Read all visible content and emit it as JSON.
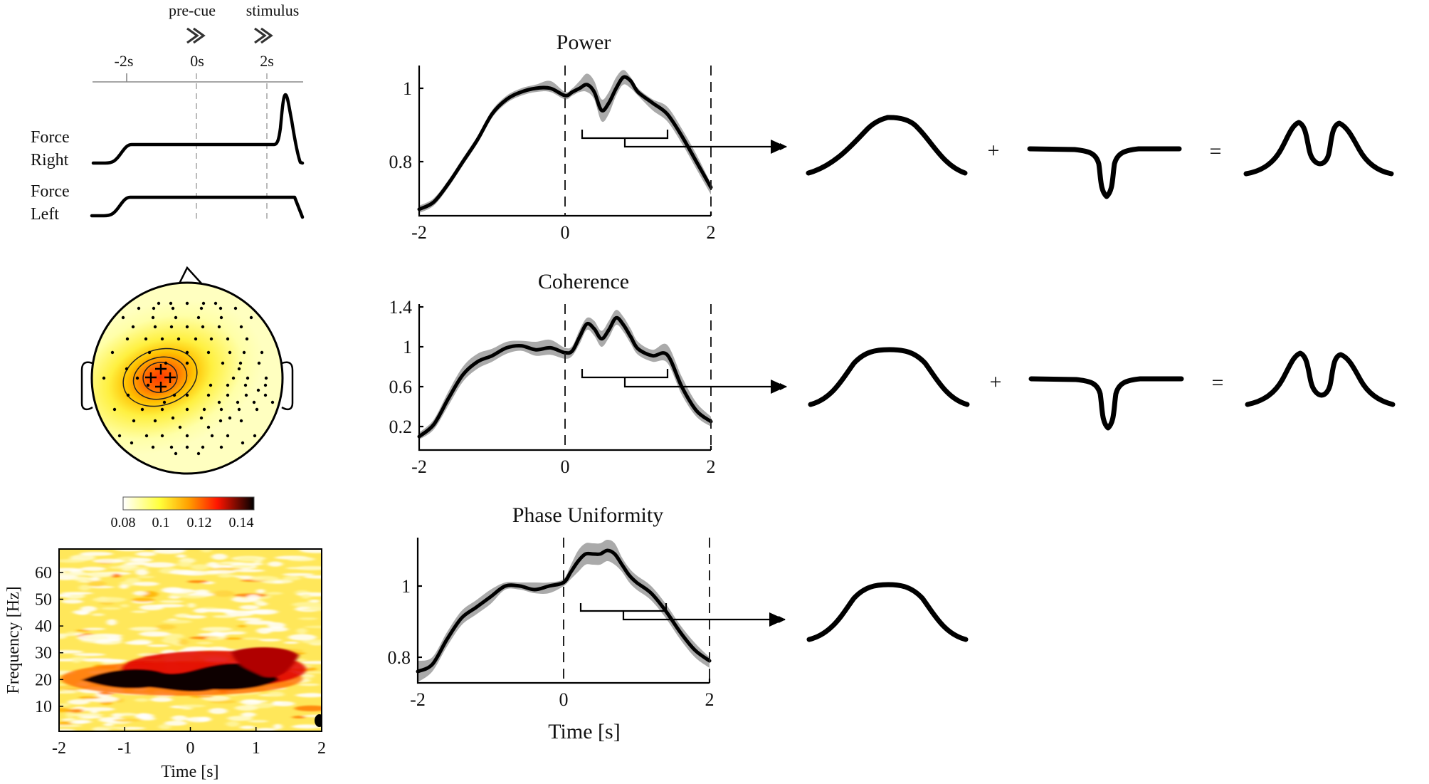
{
  "timeline": {
    "events": [
      {
        "label": "pre-cue",
        "icon": "double-chevron-right",
        "x": 270
      },
      {
        "label": "stimulus",
        "icon": "double-chevron-right",
        "x": 383
      }
    ],
    "ticks": [
      {
        "label": "-2s",
        "x": 178
      },
      {
        "label": "0s",
        "x": 276
      },
      {
        "label": "2s",
        "x": 375
      }
    ],
    "traces": [
      {
        "label_line1": "Force",
        "label_line2": "Right"
      },
      {
        "label_line1": "Force",
        "label_line2": "Left"
      }
    ]
  },
  "topoplot": {
    "colorbar": {
      "ticks": [
        "0.08",
        "0.1",
        "0.12",
        "0.14"
      ],
      "colors": [
        "#ffffff",
        "#ffff30",
        "#ff9a00",
        "#ff1a00",
        "#000000"
      ]
    }
  },
  "spectrogram": {
    "xlabel": "Time [s]",
    "ylabel": "Frequency [Hz]",
    "xticks": [
      "-2",
      "-1",
      "0",
      "1",
      "2"
    ],
    "yticks": [
      "10",
      "20",
      "30",
      "40",
      "50",
      "60"
    ]
  },
  "plots": {
    "power": {
      "title": "Power"
    },
    "coherence": {
      "title": "Coherence"
    },
    "phase": {
      "title": "Phase Uniformity",
      "xlabel": "Time [s]"
    }
  },
  "operators": {
    "plus": "+",
    "equals": "="
  },
  "chart_data": [
    {
      "type": "line",
      "title": "Power",
      "xlabel": "",
      "ylabel": "",
      "xlim": [
        -2,
        2
      ],
      "ylim": [
        0.65,
        1.06
      ],
      "xticks": [
        "-2",
        "0",
        "2"
      ],
      "yticks": [
        "0.8",
        "1"
      ],
      "vlines_dashed": [
        0,
        2
      ],
      "x": [
        -2.0,
        -1.8,
        -1.6,
        -1.4,
        -1.2,
        -1.0,
        -0.8,
        -0.6,
        -0.4,
        -0.2,
        0.0,
        0.1,
        0.2,
        0.3,
        0.4,
        0.5,
        0.6,
        0.7,
        0.8,
        0.9,
        1.0,
        1.2,
        1.4,
        1.6,
        1.8,
        2.0
      ],
      "series": [
        {
          "name": "mean",
          "values": [
            0.67,
            0.69,
            0.74,
            0.8,
            0.86,
            0.93,
            0.97,
            0.99,
            1.0,
            1.0,
            0.98,
            0.99,
            1.0,
            1.01,
            0.99,
            0.94,
            0.96,
            1.0,
            1.03,
            1.02,
            0.99,
            0.96,
            0.93,
            0.87,
            0.8,
            0.73
          ]
        },
        {
          "name": "sem_upper",
          "values": [
            0.68,
            0.7,
            0.75,
            0.81,
            0.87,
            0.94,
            0.98,
            1.0,
            1.01,
            1.02,
            0.99,
            1.0,
            1.02,
            1.04,
            1.02,
            0.97,
            0.99,
            1.03,
            1.05,
            1.03,
            1.0,
            0.97,
            0.95,
            0.89,
            0.82,
            0.74
          ]
        },
        {
          "name": "sem_lower",
          "values": [
            0.66,
            0.68,
            0.73,
            0.79,
            0.85,
            0.92,
            0.96,
            0.98,
            0.99,
            0.99,
            0.97,
            0.98,
            0.99,
            0.99,
            0.97,
            0.91,
            0.93,
            0.98,
            1.01,
            1.0,
            0.98,
            0.94,
            0.91,
            0.85,
            0.78,
            0.71
          ]
        }
      ]
    },
    {
      "type": "line",
      "title": "Coherence",
      "xlabel": "",
      "ylabel": "",
      "xlim": [
        -2,
        2
      ],
      "ylim": [
        0.07,
        1.44
      ],
      "xticks": [
        "-2",
        "0",
        "2"
      ],
      "yticks": [
        "0.2",
        "0.6",
        "1",
        "1.4"
      ],
      "vlines_dashed": [
        0,
        2
      ],
      "x": [
        -2.0,
        -1.8,
        -1.6,
        -1.4,
        -1.2,
        -1.0,
        -0.8,
        -0.6,
        -0.4,
        -0.2,
        0.0,
        0.1,
        0.2,
        0.3,
        0.4,
        0.5,
        0.6,
        0.7,
        0.8,
        0.9,
        1.0,
        1.2,
        1.4,
        1.6,
        1.8,
        2.0
      ],
      "series": [
        {
          "name": "mean",
          "values": [
            0.1,
            0.22,
            0.48,
            0.72,
            0.85,
            0.91,
            0.99,
            1.01,
            0.97,
            0.99,
            0.94,
            0.96,
            1.1,
            1.23,
            1.18,
            1.08,
            1.17,
            1.29,
            1.22,
            1.1,
            0.98,
            0.91,
            0.92,
            0.6,
            0.36,
            0.25
          ]
        },
        {
          "name": "sem_upper",
          "values": [
            0.14,
            0.27,
            0.55,
            0.8,
            0.93,
            0.98,
            1.05,
            1.06,
            1.05,
            1.07,
            0.99,
            1.01,
            1.17,
            1.29,
            1.26,
            1.16,
            1.26,
            1.37,
            1.3,
            1.18,
            1.05,
            0.97,
            1.02,
            0.7,
            0.44,
            0.3
          ]
        },
        {
          "name": "sem_lower",
          "values": [
            0.07,
            0.17,
            0.41,
            0.65,
            0.78,
            0.85,
            0.93,
            0.96,
            0.91,
            0.92,
            0.88,
            0.91,
            1.03,
            1.17,
            1.11,
            1.0,
            1.09,
            1.22,
            1.15,
            1.03,
            0.92,
            0.85,
            0.84,
            0.52,
            0.3,
            0.2
          ]
        }
      ]
    },
    {
      "type": "line",
      "title": "Phase Uniformity",
      "xlabel": "Time [s]",
      "ylabel": "",
      "xlim": [
        -2,
        2
      ],
      "ylim": [
        0.73,
        1.14
      ],
      "xticks": [
        "-2",
        "0",
        "2"
      ],
      "yticks": [
        "0.8",
        "1"
      ],
      "vlines_dashed": [
        0,
        2
      ],
      "x": [
        -2.0,
        -1.8,
        -1.6,
        -1.4,
        -1.2,
        -1.0,
        -0.8,
        -0.6,
        -0.4,
        -0.2,
        0.0,
        0.1,
        0.2,
        0.3,
        0.4,
        0.5,
        0.6,
        0.7,
        0.8,
        0.9,
        1.0,
        1.2,
        1.4,
        1.6,
        1.8,
        2.0
      ],
      "series": [
        {
          "name": "mean",
          "values": [
            0.76,
            0.78,
            0.85,
            0.91,
            0.94,
            0.97,
            1.0,
            1.0,
            0.99,
            1.0,
            1.01,
            1.04,
            1.07,
            1.09,
            1.09,
            1.09,
            1.1,
            1.09,
            1.06,
            1.03,
            1.01,
            0.98,
            0.93,
            0.87,
            0.82,
            0.79
          ]
        },
        {
          "name": "sem_upper",
          "values": [
            0.79,
            0.8,
            0.87,
            0.93,
            0.96,
            0.99,
            1.01,
            1.01,
            1.01,
            1.01,
            1.02,
            1.06,
            1.1,
            1.12,
            1.12,
            1.12,
            1.13,
            1.12,
            1.08,
            1.05,
            1.03,
            1.0,
            0.95,
            0.89,
            0.84,
            0.8
          ]
        },
        {
          "name": "sem_lower",
          "values": [
            0.73,
            0.76,
            0.83,
            0.89,
            0.92,
            0.95,
            0.99,
            0.99,
            0.98,
            0.98,
            1.0,
            1.02,
            1.04,
            1.06,
            1.06,
            1.06,
            1.07,
            1.06,
            1.04,
            1.01,
            0.99,
            0.96,
            0.91,
            0.85,
            0.8,
            0.77
          ]
        }
      ]
    },
    {
      "type": "heatmap",
      "title": "",
      "xlabel": "Time [s]",
      "ylabel": "Frequency [Hz]",
      "xlim": [
        -2,
        2
      ],
      "ylim": [
        1,
        68
      ],
      "xticks": [
        "-2",
        "-1",
        "0",
        "1",
        "2"
      ],
      "yticks": [
        "10",
        "20",
        "30",
        "40",
        "50",
        "60"
      ],
      "colormap": "hot (reversed)",
      "clim": [
        0.08,
        0.14
      ],
      "annotation": "strong beta-band (approx. 15-28 Hz) activity from about -1.5 s to 1.7 s, peak near 18-22 Hz"
    }
  ]
}
